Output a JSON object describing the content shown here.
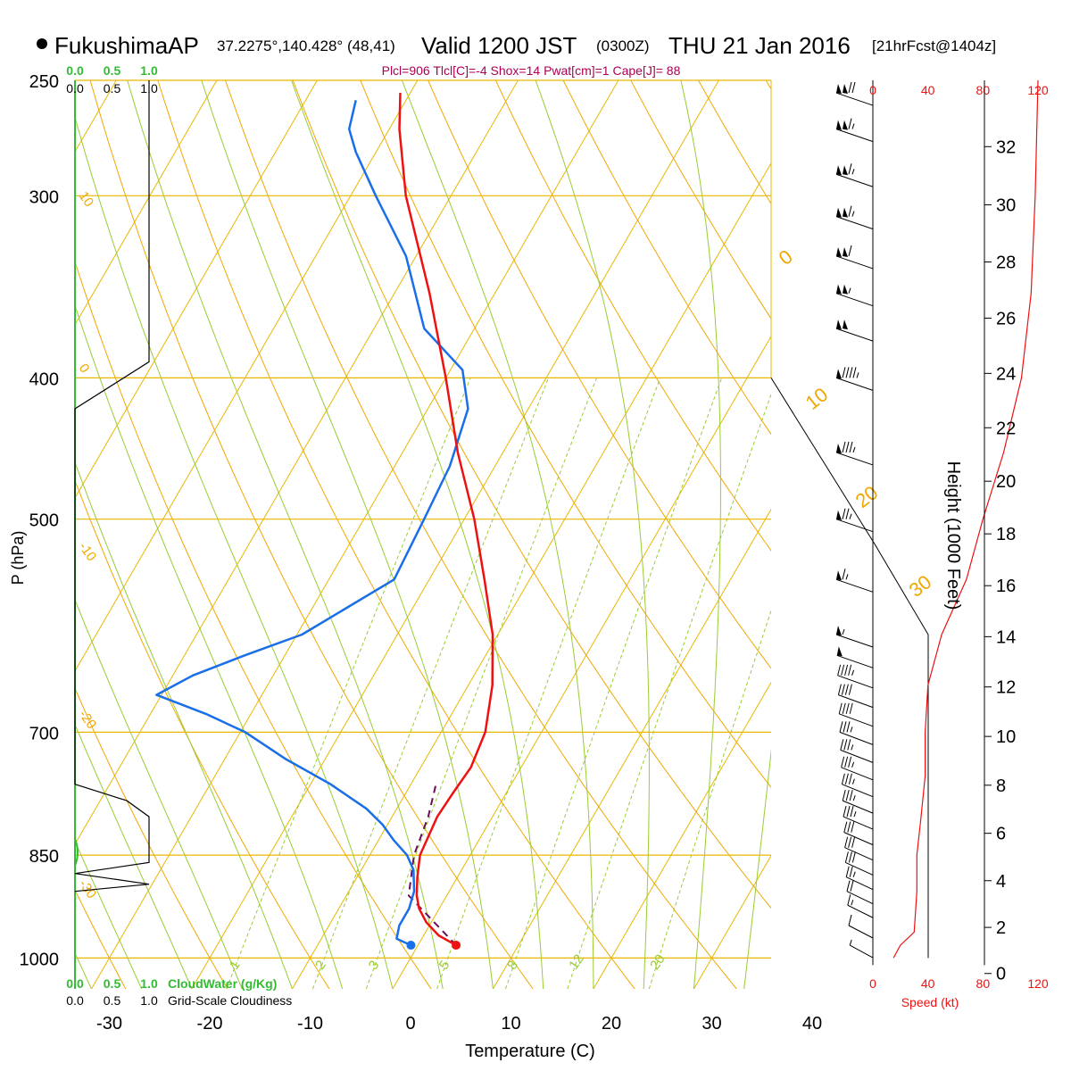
{
  "header": {
    "station": "FukushimaAP",
    "coords": "37.2275°,140.428° (48,41)",
    "valid_main": "Valid 1200 JST",
    "valid_z": "(0300Z)",
    "valid_date": "THU 21 Jan 2016",
    "fcst": "[21hrFcst@1404z]",
    "params": "Plcl=906 Tlcl[C]=-4 Shox=14 Pwat[cm]=1 Cape[J]= 88"
  },
  "colors": {
    "temp": "#ee1111",
    "dewpoint": "#1a6fe8",
    "isotherm": "#e8b800",
    "dry_adiabat": "#f0a800",
    "moist_adiabat": "#99cc33",
    "mixing_ratio": "#99cc33",
    "parcel": "#6a0d5a",
    "cloud_water": "#33bb33",
    "cloudiness": "#000000",
    "speed": "#ee1111",
    "params": "#aa0055",
    "height_axis": "#000000"
  },
  "chart_data": {
    "type": "skew-t",
    "xlabel": "Temperature (C)",
    "ylabel": "P (hPa)",
    "x_ticks": [
      -30,
      -20,
      -10,
      0,
      10,
      20,
      30,
      40
    ],
    "pressure_ticks": [
      250,
      300,
      400,
      500,
      700,
      850,
      1000
    ],
    "plot_pressure_range": [
      250,
      1000
    ],
    "temperature": [
      [
        980,
        3.8
      ],
      [
        965,
        1.5
      ],
      [
        945,
        -0.5
      ],
      [
        925,
        -2.0
      ],
      [
        906,
        -3.0
      ],
      [
        880,
        -4.0
      ],
      [
        850,
        -5.0
      ],
      [
        800,
        -5.5
      ],
      [
        770,
        -5.3
      ],
      [
        740,
        -5.0
      ],
      [
        700,
        -5.6
      ],
      [
        650,
        -7.6
      ],
      [
        600,
        -10.5
      ],
      [
        550,
        -14.5
      ],
      [
        500,
        -19.0
      ],
      [
        450,
        -24.5
      ],
      [
        400,
        -30.0
      ],
      [
        350,
        -36.5
      ],
      [
        300,
        -44.5
      ],
      [
        270,
        -49.0
      ],
      [
        255,
        -51.0
      ]
    ],
    "dewpoint": [
      [
        980,
        -0.7
      ],
      [
        970,
        -2.5
      ],
      [
        950,
        -3.0
      ],
      [
        925,
        -3.0
      ],
      [
        900,
        -3.5
      ],
      [
        870,
        -4.8
      ],
      [
        850,
        -6.3
      ],
      [
        830,
        -8.5
      ],
      [
        810,
        -10.5
      ],
      [
        790,
        -13.0
      ],
      [
        760,
        -18.0
      ],
      [
        730,
        -24.0
      ],
      [
        700,
        -29.5
      ],
      [
        680,
        -34.5
      ],
      [
        660,
        -40.5
      ],
      [
        640,
        -38.0
      ],
      [
        620,
        -34.0
      ],
      [
        600,
        -29.5
      ],
      [
        550,
        -23.5
      ],
      [
        500,
        -24.0
      ],
      [
        460,
        -24.5
      ],
      [
        420,
        -26.0
      ],
      [
        395,
        -28.8
      ],
      [
        370,
        -35.0
      ],
      [
        330,
        -41.0
      ],
      [
        300,
        -47.5
      ],
      [
        280,
        -52.0
      ],
      [
        270,
        -54.0
      ],
      [
        258,
        -55.0
      ]
    ],
    "surface_temperature": 3.8,
    "surface_dewpoint": -0.7,
    "surface_pressure": 980,
    "parcel_path": [
      [
        980,
        3.8
      ],
      [
        906,
        -3.8
      ],
      [
        850,
        -5.6
      ],
      [
        800,
        -6.4
      ],
      [
        760,
        -7.5
      ]
    ],
    "isotherm_labels": [
      -30,
      -20,
      -10,
      0,
      10,
      20,
      30
    ],
    "mixing_ratio_labels": [
      "1",
      "2",
      "3",
      "5",
      "8",
      "12",
      "20"
    ],
    "potential_temp_labels": [
      "10",
      "0",
      "-10",
      "-20",
      "-30"
    ],
    "moist_labels": [
      "0",
      "10",
      "20",
      "30"
    ],
    "cloud_water_axis": {
      "title": "CloudWater (g/Kg)",
      "ticks": [
        "0.0",
        "0.5",
        "1.0"
      ]
    },
    "cloudiness_axis": {
      "title": "Grid-Scale Cloudiness",
      "ticks": [
        "0.0",
        "0.5",
        "1.0"
      ]
    },
    "cloud_water": [],
    "cloudiness": [
      [
        250,
        1.0
      ],
      [
        390,
        1.0
      ],
      [
        420,
        0.0
      ],
      [
        760,
        0.0
      ],
      [
        780,
        0.7
      ],
      [
        800,
        1.0
      ],
      [
        860,
        1.0
      ],
      [
        875,
        0.0
      ],
      [
        890,
        1.0
      ],
      [
        900,
        0.0
      ]
    ],
    "height_axis": {
      "title": "Height (1000 Feet)",
      "ticks": [
        0,
        2,
        4,
        6,
        8,
        10,
        12,
        14,
        16,
        18,
        20,
        22,
        24,
        26,
        28,
        30,
        32
      ]
    },
    "speed_axis": {
      "title": "Speed (kt)",
      "ticks": [
        "0",
        "40",
        "80",
        "120"
      ]
    },
    "wind_speed_profile": [
      [
        1000,
        15
      ],
      [
        980,
        20
      ],
      [
        960,
        30
      ],
      [
        900,
        32
      ],
      [
        850,
        32
      ],
      [
        800,
        35
      ],
      [
        750,
        38
      ],
      [
        700,
        38
      ],
      [
        650,
        40
      ],
      [
        600,
        50
      ],
      [
        550,
        68
      ],
      [
        500,
        80
      ],
      [
        450,
        95
      ],
      [
        400,
        108
      ],
      [
        350,
        115
      ],
      [
        300,
        118
      ],
      [
        250,
        120
      ]
    ],
    "wind_barbs": [
      [
        980,
        5,
        250
      ],
      [
        950,
        10,
        255
      ],
      [
        920,
        15,
        255
      ],
      [
        900,
        20,
        260
      ],
      [
        880,
        25,
        260
      ],
      [
        860,
        30,
        260
      ],
      [
        840,
        30,
        262
      ],
      [
        820,
        32,
        265
      ],
      [
        800,
        35,
        265
      ],
      [
        780,
        35,
        265
      ],
      [
        760,
        35,
        268
      ],
      [
        740,
        38,
        270
      ],
      [
        720,
        38,
        270
      ],
      [
        700,
        38,
        270
      ],
      [
        680,
        40,
        270
      ],
      [
        660,
        40,
        270
      ],
      [
        640,
        45,
        270
      ],
      [
        620,
        50,
        270
      ],
      [
        600,
        55,
        272
      ],
      [
        550,
        65,
        275
      ],
      [
        500,
        75,
        275
      ],
      [
        450,
        85,
        275
      ],
      [
        400,
        95,
        275
      ],
      [
        370,
        100,
        275
      ],
      [
        350,
        105,
        275
      ],
      [
        330,
        110,
        275
      ],
      [
        310,
        115,
        275
      ],
      [
        290,
        115,
        275
      ],
      [
        270,
        118,
        275
      ],
      [
        255,
        120,
        275
      ]
    ]
  }
}
